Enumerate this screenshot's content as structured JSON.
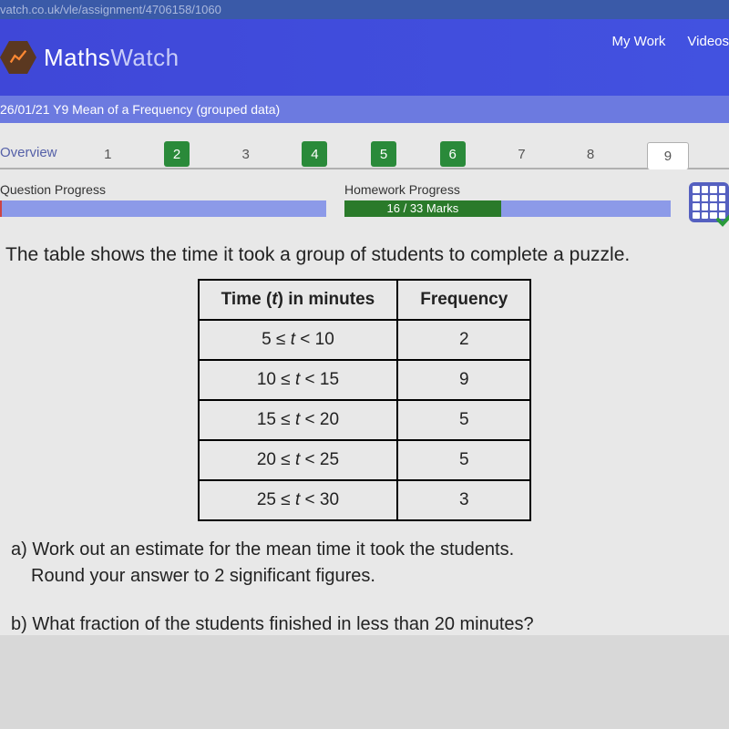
{
  "url_bar": "vatch.co.uk/vle/assignment/4706158/1060",
  "header": {
    "logo_maths": "Maths",
    "logo_watch": "Watch",
    "links": [
      "My Work",
      "Videos"
    ]
  },
  "sub_header": "26/01/21 Y9 Mean of a Frequency (grouped data)",
  "tabs": {
    "overview": "Overview",
    "numbers": [
      "1",
      "2",
      "3",
      "4",
      "5",
      "6",
      "7",
      "8",
      "9"
    ],
    "done_indices": [
      1,
      3,
      4,
      5
    ],
    "current_index": 8
  },
  "progress": {
    "question": {
      "label": "Question Progress",
      "marker_value": "0"
    },
    "homework": {
      "label": "Homework Progress",
      "text": "16 / 33 Marks",
      "fill_percent": 48
    }
  },
  "question": {
    "intro": "The table shows the time it took a group of students to complete a puzzle.",
    "table": {
      "headers": [
        "Time (t) in minutes",
        "Frequency"
      ],
      "rows": [
        [
          "5 ≤ t < 10",
          "2"
        ],
        [
          "10 ≤ t < 15",
          "9"
        ],
        [
          "15 ≤ t < 20",
          "5"
        ],
        [
          "20 ≤ t < 25",
          "5"
        ],
        [
          "25 ≤ t < 30",
          "3"
        ]
      ]
    },
    "part_a_line1": "a) Work out an estimate for the mean time it took the students.",
    "part_a_line2": "Round your answer to 2 significant figures.",
    "part_b": "b) What fraction of the students finished in less than 20 minutes?"
  },
  "colors": {
    "header_bg": "#4252e0",
    "sub_header_bg": "#6c7ae0",
    "done_tab": "#2a8a3a",
    "progress_bg": "#8c9ae8",
    "hw_fill": "#2a7a2a"
  }
}
